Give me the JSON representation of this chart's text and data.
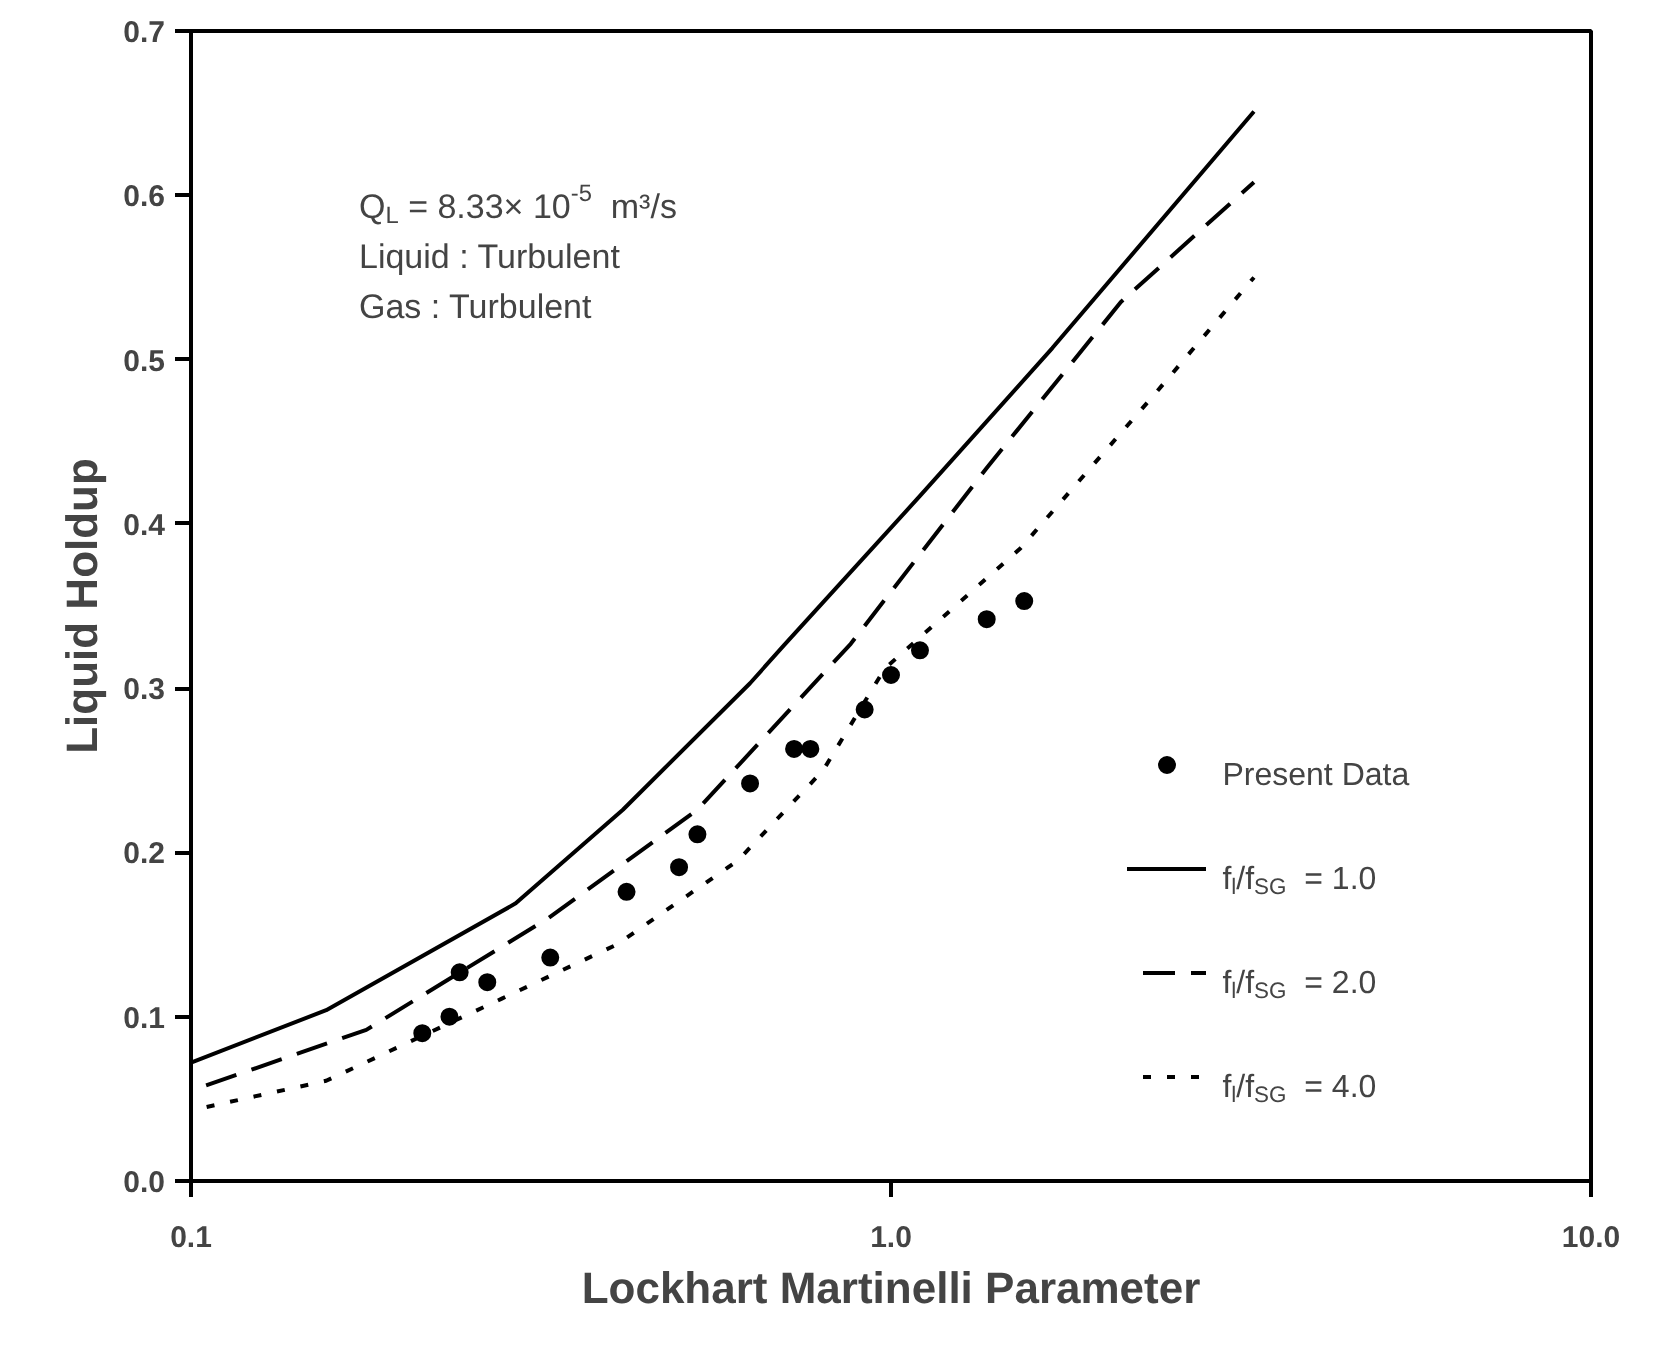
{
  "chart_data": {
    "type": "line",
    "xlabel": "Lockhart Martinelli Parameter",
    "ylabel": "Liquid Holdup",
    "log": "x",
    "xlim": [
      0.1,
      10.0
    ],
    "ylim": [
      0.0,
      0.7
    ],
    "xticks": [
      {
        "value": 0.1,
        "label": "0.1"
      },
      {
        "value": 1.0,
        "label": "1.0"
      },
      {
        "value": 10.0,
        "label": "10.0"
      }
    ],
    "yticks": [
      {
        "value": 0.0,
        "label": "0.0"
      },
      {
        "value": 0.1,
        "label": "0.1"
      },
      {
        "value": 0.2,
        "label": "0.2"
      },
      {
        "value": 0.3,
        "label": "0.3"
      },
      {
        "value": 0.4,
        "label": "0.4"
      },
      {
        "value": 0.5,
        "label": "0.5"
      },
      {
        "value": 0.6,
        "label": "0.6"
      },
      {
        "value": 0.7,
        "label": "0.7"
      }
    ],
    "grid": false,
    "legend": "bottom right",
    "annotations": [
      "Q$_{L}$ = 8.33× 10$^{-5}$  m³/s",
      "Liquid : Turbulent",
      "Gas : Turbulent"
    ],
    "series": [
      {
        "name": "Present Data",
        "type": "scatter",
        "marker": "circle",
        "color": "#000000",
        "x": [
          0.214,
          0.234,
          0.242,
          0.265,
          0.326,
          0.419,
          0.498,
          0.529,
          0.629,
          0.727,
          0.767,
          0.917,
          1.0,
          1.1,
          1.37,
          1.55
        ],
        "values": [
          0.09,
          0.1,
          0.127,
          0.121,
          0.136,
          0.176,
          0.191,
          0.211,
          0.242,
          0.263,
          0.263,
          0.287,
          0.308,
          0.323,
          0.342,
          0.353
        ]
      },
      {
        "name": "f$_{l}$/f$_{SG}$  =  1.0",
        "line_style": "solid",
        "color": "#000000",
        "x": [
          0.1,
          0.156,
          0.291,
          0.414,
          0.629,
          0.703,
          1.1,
          1.7,
          3.3
        ],
        "values": [
          0.072,
          0.104,
          0.169,
          0.226,
          0.303,
          0.326,
          0.417,
          0.507,
          0.651
        ]
      },
      {
        "name": "f$_{l}$/f$_{SG}$  =  2.0",
        "line_style": "dashed",
        "color": "#000000",
        "x": [
          0.1,
          0.178,
          0.324,
          0.529,
          0.876,
          1.37,
          2.13,
          3.3
        ],
        "values": [
          0.055,
          0.092,
          0.16,
          0.226,
          0.327,
          0.434,
          0.535,
          0.608
        ]
      },
      {
        "name": "f$_{l}$/f$_{SG}$  =  4.0",
        "line_style": "dotted",
        "color": "#000000",
        "x": [
          0.1,
          0.156,
          0.278,
          0.406,
          0.604,
          0.8,
          0.98,
          1.53,
          2.37,
          3.3
        ],
        "values": [
          0.043,
          0.061,
          0.111,
          0.144,
          0.195,
          0.25,
          0.312,
          0.385,
          0.478,
          0.55
        ]
      }
    ]
  }
}
